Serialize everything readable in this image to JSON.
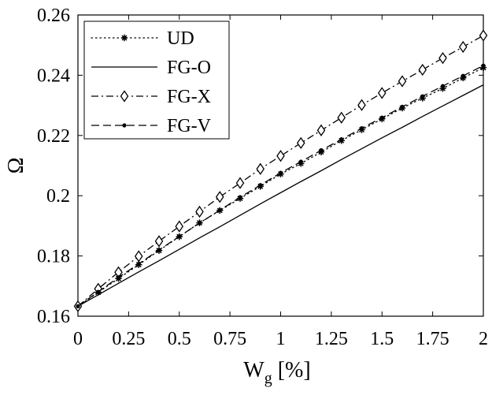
{
  "chart_data": {
    "type": "line",
    "title": "",
    "xlabel": "W",
    "xlabel_sub": "g",
    "xlabel_unit": " [%]",
    "ylabel": "Ω",
    "xlim": [
      0,
      2
    ],
    "ylim": [
      0.16,
      0.26
    ],
    "xticks": [
      0,
      0.25,
      0.5,
      0.75,
      1,
      1.25,
      1.5,
      1.75,
      2
    ],
    "xtick_labels": [
      "0",
      "0.25",
      "0.5",
      "0.75",
      "1",
      "1.25",
      "1.5",
      "1.75",
      "2"
    ],
    "yticks": [
      0.16,
      0.18,
      0.2,
      0.22,
      0.24,
      0.26
    ],
    "ytick_labels": [
      "0.16",
      "0.18",
      "0.2",
      "0.22",
      "0.24",
      "0.26"
    ],
    "grid": false,
    "legend_position": "top-left",
    "x": [
      0,
      0.1,
      0.2,
      0.3,
      0.4,
      0.5,
      0.6,
      0.7,
      0.8,
      0.9,
      1.0,
      1.1,
      1.2,
      1.3,
      1.4,
      1.5,
      1.6,
      1.7,
      1.8,
      1.9,
      2.0
    ],
    "series": [
      {
        "name": "UD",
        "line": "dotted",
        "marker": "asterisk",
        "values": [
          0.1633,
          0.1679,
          0.1725,
          0.1771,
          0.1818,
          0.1864,
          0.191,
          0.1951,
          0.1991,
          0.2031,
          0.2072,
          0.2107,
          0.2145,
          0.2183,
          0.2219,
          0.2255,
          0.2291,
          0.2324,
          0.2356,
          0.2391,
          0.2425
        ]
      },
      {
        "name": "FG-O",
        "line": "solid",
        "marker": "none",
        "values": [
          0.1633,
          0.1671,
          0.1709,
          0.1747,
          0.1784,
          0.1822,
          0.186,
          0.1897,
          0.1935,
          0.1973,
          0.201,
          0.2047,
          0.2083,
          0.212,
          0.2156,
          0.2192,
          0.2227,
          0.2263,
          0.2298,
          0.2333,
          0.2368
        ]
      },
      {
        "name": "FG-X",
        "line": "dashdot",
        "marker": "diamond",
        "values": [
          0.1633,
          0.1691,
          0.1746,
          0.1799,
          0.1849,
          0.1898,
          0.1947,
          0.1996,
          0.2042,
          0.2089,
          0.2132,
          0.2175,
          0.2217,
          0.2259,
          0.2301,
          0.2341,
          0.238,
          0.2418,
          0.2457,
          0.2494,
          0.2532
        ]
      },
      {
        "name": "FG-V",
        "line": "dashed",
        "marker": "dot",
        "values": [
          0.1633,
          0.1681,
          0.1729,
          0.1774,
          0.182,
          0.1865,
          0.1909,
          0.1952,
          0.1995,
          0.2035,
          0.2076,
          0.2113,
          0.2151,
          0.2187,
          0.2224,
          0.2259,
          0.2295,
          0.233,
          0.2364,
          0.2398,
          0.2432
        ]
      }
    ]
  }
}
